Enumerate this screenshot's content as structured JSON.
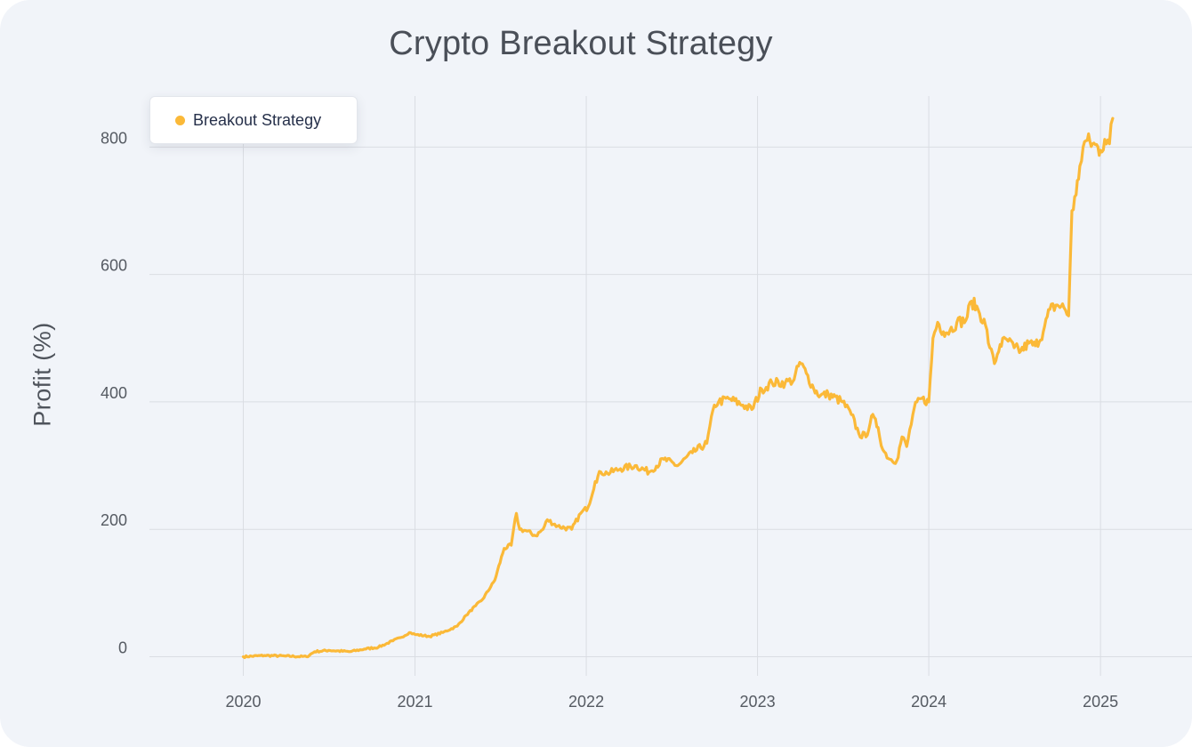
{
  "chart_data": {
    "type": "line",
    "title": "Crypto Breakout Strategy",
    "xlabel": "",
    "ylabel": "Profit  (%)",
    "x_ticks": [
      "2020",
      "2021",
      "2022",
      "2023",
      "2024",
      "2025"
    ],
    "y_ticks": [
      0,
      200,
      400,
      600,
      800
    ],
    "xlim": [
      "2019-06-15",
      "2025-07-15"
    ],
    "ylim": [
      -30,
      880
    ],
    "grid": true,
    "legend_position": "top-left",
    "series": [
      {
        "name": "Breakout Strategy",
        "color": "#fbb938",
        "x": [
          "2020-01-01",
          "2020-02-15",
          "2020-04-01",
          "2020-05-15",
          "2020-06-01",
          "2020-07-01",
          "2020-08-15",
          "2020-09-15",
          "2020-10-15",
          "2020-11-15",
          "2020-12-01",
          "2020-12-20",
          "2021-01-01",
          "2021-02-01",
          "2021-03-01",
          "2021-04-01",
          "2021-04-20",
          "2021-05-10",
          "2021-05-25",
          "2021-06-20",
          "2021-07-10",
          "2021-07-25",
          "2021-08-05",
          "2021-08-12",
          "2021-08-25",
          "2021-09-15",
          "2021-10-01",
          "2021-10-10",
          "2021-11-01",
          "2021-12-01",
          "2021-12-20",
          "2022-01-05",
          "2022-01-20",
          "2022-02-01",
          "2022-02-15",
          "2022-03-15",
          "2022-04-15",
          "2022-05-15",
          "2022-06-15",
          "2022-07-15",
          "2022-08-15",
          "2022-09-15",
          "2022-10-01",
          "2022-10-10",
          "2022-11-01",
          "2022-12-01",
          "2022-12-20",
          "2023-01-10",
          "2023-02-01",
          "2023-03-01",
          "2023-03-20",
          "2023-04-01",
          "2023-04-15",
          "2023-05-01",
          "2023-05-15",
          "2023-06-01",
          "2023-07-01",
          "2023-07-20",
          "2023-08-05",
          "2023-08-20",
          "2023-09-01",
          "2023-09-15",
          "2023-09-25",
          "2023-10-10",
          "2023-10-25",
          "2023-11-05",
          "2023-11-15",
          "2023-12-01",
          "2023-12-15",
          "2024-01-01",
          "2024-01-10",
          "2024-01-20",
          "2024-02-01",
          "2024-02-15",
          "2024-03-01",
          "2024-03-20",
          "2024-04-01",
          "2024-04-15",
          "2024-05-01",
          "2024-05-10",
          "2024-05-20",
          "2024-06-01",
          "2024-06-15",
          "2024-07-01",
          "2024-07-15",
          "2024-08-01",
          "2024-08-15",
          "2024-09-01",
          "2024-09-15",
          "2024-10-01",
          "2024-10-15",
          "2024-10-25",
          "2024-11-01",
          "2024-11-10",
          "2024-11-18",
          "2024-11-25",
          "2024-12-01",
          "2024-12-15",
          "2025-01-01",
          "2025-01-10",
          "2025-01-20",
          "2025-01-27"
        ],
        "y": [
          0,
          2,
          1,
          0,
          8,
          10,
          8,
          12,
          15,
          25,
          30,
          38,
          35,
          32,
          38,
          48,
          65,
          80,
          90,
          120,
          170,
          175,
          225,
          200,
          198,
          190,
          200,
          215,
          205,
          200,
          225,
          235,
          275,
          290,
          288,
          295,
          300,
          290,
          310,
          300,
          320,
          335,
          395,
          400,
          405,
          395,
          388,
          420,
          430,
          430,
          435,
          462,
          445,
          420,
          410,
          412,
          400,
          380,
          350,
          345,
          378,
          360,
          325,
          310,
          308,
          345,
          330,
          390,
          405,
          400,
          500,
          525,
          510,
          512,
          525,
          528,
          558,
          545,
          520,
          485,
          460,
          490,
          498,
          485,
          480,
          492,
          488,
          510,
          545,
          552,
          548,
          535,
          700,
          725,
          770,
          800,
          810,
          805,
          795,
          812,
          805,
          845
        ]
      }
    ]
  }
}
